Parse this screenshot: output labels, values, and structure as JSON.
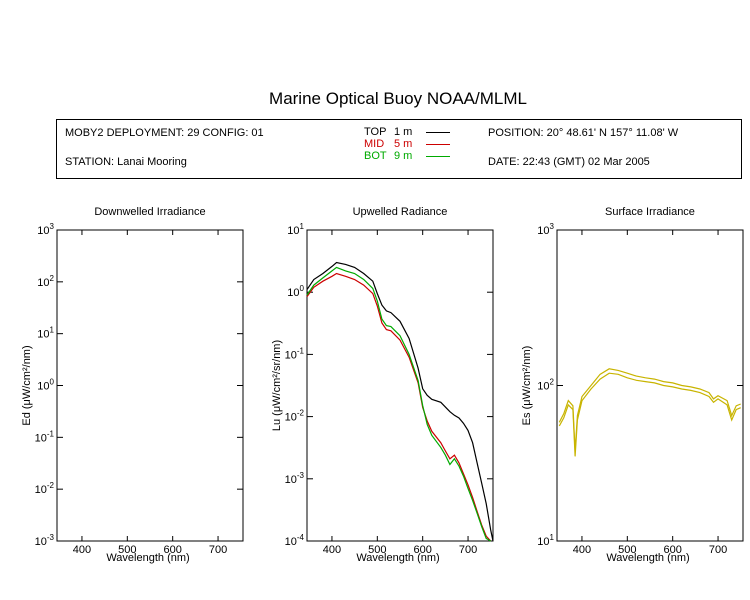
{
  "header": {
    "title": "Marine Optical Buoy NOAA/MLML",
    "deployment": "MOBY2 DEPLOYMENT: 29 CONFIG: 01",
    "station": "STATION: Lanai Mooring",
    "position": "POSITION: 20° 48.61' N   157° 11.08' W",
    "date": "DATE: 22:43 (GMT) 02 Mar 2005"
  },
  "legend": [
    {
      "name": "TOP",
      "depth": "1  m",
      "color": "#000000"
    },
    {
      "name": "MID",
      "depth": "5  m",
      "color": "#cc0000"
    },
    {
      "name": "BOT",
      "depth": "9  m",
      "color": "#00aa00"
    }
  ],
  "chart_data": [
    {
      "type": "line",
      "title": "Downwelled Irradiance",
      "xlabel": "Wavelength (nm)",
      "ylabel": "Ed  (μW/cm²/nm)",
      "xlim": [
        345,
        755
      ],
      "xticks": [
        400,
        500,
        600,
        700
      ],
      "yscale": "log",
      "ylim": [
        0.001,
        1000
      ],
      "series": []
    },
    {
      "type": "line",
      "title": "Upwelled Radiance",
      "xlabel": "Wavelength (nm)",
      "ylabel": "Lu  (μW/cm²/sr/nm)",
      "xlim": [
        345,
        755
      ],
      "xticks": [
        400,
        500,
        600,
        700
      ],
      "yscale": "log",
      "ylim": [
        0.0001,
        10
      ],
      "series": [
        {
          "name": "TOP",
          "color": "#000000",
          "x": [
            345,
            360,
            380,
            400,
            410,
            430,
            450,
            470,
            490,
            500,
            510,
            520,
            530,
            550,
            570,
            590,
            600,
            610,
            620,
            640,
            660,
            670,
            680,
            690,
            700,
            710,
            720,
            730,
            740,
            750,
            755
          ],
          "y": [
            1.1,
            1.6,
            2.0,
            2.6,
            3.0,
            2.8,
            2.5,
            2.0,
            1.5,
            0.95,
            0.62,
            0.5,
            0.47,
            0.34,
            0.18,
            0.06,
            0.028,
            0.022,
            0.019,
            0.017,
            0.012,
            0.0105,
            0.0095,
            0.0078,
            0.006,
            0.0038,
            0.0018,
            0.00085,
            0.0004,
            0.00015,
            0.0001
          ]
        },
        {
          "name": "MID",
          "color": "#cc0000",
          "x": [
            345,
            360,
            380,
            400,
            410,
            430,
            450,
            470,
            490,
            500,
            510,
            520,
            530,
            550,
            570,
            590,
            600,
            610,
            620,
            640,
            650,
            660,
            670,
            680,
            690,
            700,
            710,
            720,
            730,
            740,
            750
          ],
          "y": [
            0.85,
            1.2,
            1.5,
            1.8,
            2.0,
            1.8,
            1.6,
            1.3,
            0.95,
            0.6,
            0.32,
            0.25,
            0.24,
            0.17,
            0.09,
            0.035,
            0.014,
            0.0085,
            0.0058,
            0.0038,
            0.0028,
            0.0021,
            0.0024,
            0.0018,
            0.0012,
            0.0008,
            0.0005,
            0.0003,
            0.00018,
            0.00012,
            0.0001
          ]
        },
        {
          "name": "BOT",
          "color": "#00aa00",
          "x": [
            345,
            360,
            380,
            400,
            410,
            430,
            450,
            470,
            490,
            500,
            510,
            520,
            530,
            550,
            570,
            590,
            600,
            610,
            620,
            640,
            650,
            660,
            670,
            680,
            690,
            700,
            710,
            720,
            730,
            740,
            750
          ],
          "y": [
            0.9,
            1.3,
            1.7,
            2.2,
            2.5,
            2.2,
            2.0,
            1.6,
            1.15,
            0.72,
            0.37,
            0.29,
            0.28,
            0.2,
            0.1,
            0.038,
            0.015,
            0.0075,
            0.005,
            0.0032,
            0.0024,
            0.0017,
            0.0021,
            0.0016,
            0.0011,
            0.0007,
            0.00045,
            0.00028,
            0.00017,
            0.00011,
            0.0001
          ]
        }
      ]
    },
    {
      "type": "line",
      "title": "Surface Irradiance",
      "xlabel": "Wavelength (nm)",
      "ylabel": "Es  (μW/cm²/nm)",
      "xlim": [
        345,
        755
      ],
      "xticks": [
        400,
        500,
        600,
        700
      ],
      "yscale": "log",
      "ylim": [
        10,
        1000
      ],
      "series": [
        {
          "name": "Es",
          "color": "#c8b400",
          "x": [
            350,
            360,
            370,
            380,
            385,
            390,
            400,
            420,
            440,
            460,
            480,
            500,
            520,
            540,
            560,
            580,
            600,
            620,
            640,
            660,
            680,
            690,
            700,
            720,
            730,
            740,
            750
          ],
          "y": [
            55,
            62,
            75,
            70,
            35,
            60,
            80,
            95,
            110,
            120,
            118,
            112,
            108,
            106,
            104,
            100,
            98,
            95,
            93,
            90,
            85,
            78,
            82,
            75,
            60,
            70,
            72
          ]
        },
        {
          "name": "Es",
          "color": "#c8b400",
          "x": [
            350,
            360,
            370,
            380,
            385,
            390,
            400,
            420,
            440,
            460,
            480,
            500,
            520,
            540,
            560,
            580,
            600,
            620,
            640,
            660,
            680,
            690,
            700,
            720,
            730,
            740,
            750
          ],
          "y": [
            58,
            66,
            80,
            74,
            38,
            64,
            85,
            100,
            118,
            128,
            125,
            120,
            115,
            112,
            110,
            106,
            104,
            100,
            98,
            95,
            90,
            82,
            86,
            80,
            64,
            74,
            76
          ]
        }
      ]
    }
  ]
}
